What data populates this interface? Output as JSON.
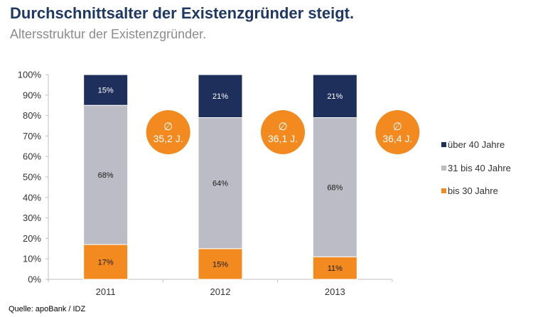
{
  "title": "Durchschnittsalter der Existenzgründer steigt.",
  "subtitle": "Altersstruktur der Existenzgründer.",
  "source": "Quelle: apoBank / IDZ",
  "colors": {
    "bis_30": "#f28a20",
    "31_40": "#bcbcc6",
    "ueber_40": "#1f2f5c",
    "average_circle": "#f28a20"
  },
  "chart_data": {
    "type": "bar",
    "stacked": true,
    "categories": [
      "2011",
      "2012",
      "2013"
    ],
    "series": [
      {
        "name": "bis 30 Jahre",
        "values": [
          17,
          15,
          11
        ],
        "labels": [
          "17%",
          "15%",
          "11%"
        ],
        "color": "#f28a20"
      },
      {
        "name": "31 bis 40 Jahre",
        "values": [
          68,
          64,
          68
        ],
        "labels": [
          "68%",
          "64%",
          "68%"
        ],
        "color": "#bcbcc6"
      },
      {
        "name": "über 40 Jahre",
        "values": [
          15,
          21,
          21
        ],
        "labels": [
          "15%",
          "21%",
          "21%"
        ],
        "color": "#1f2f5c"
      }
    ],
    "averages": {
      "symbol": "∅",
      "labels": [
        "35,2 J.",
        "36,1 J.",
        "36,4 J."
      ]
    },
    "yticks": [
      "0%",
      "10%",
      "20%",
      "30%",
      "40%",
      "50%",
      "60%",
      "70%",
      "80%",
      "90%",
      "100%"
    ],
    "ylim": [
      0,
      100
    ],
    "grid": false,
    "legend_position": "right",
    "legend_order": [
      "über 40 Jahre",
      "31 bis 40 Jahre",
      "bis 30 Jahre"
    ]
  }
}
